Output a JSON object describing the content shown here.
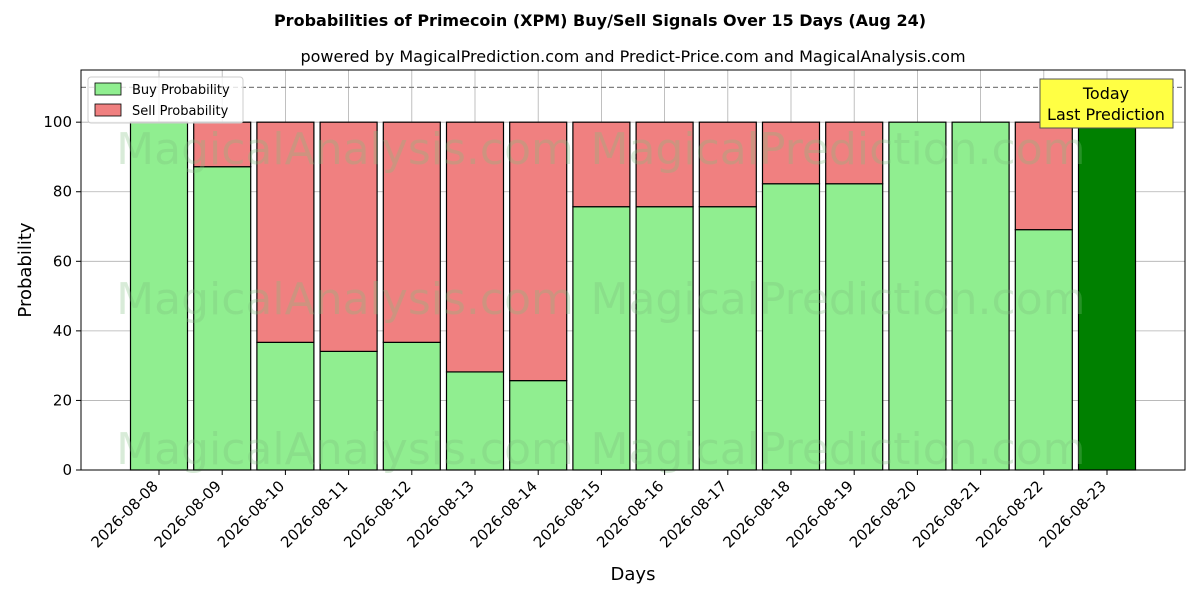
{
  "chart_data": {
    "type": "bar",
    "stacked": true,
    "title": "Probabilities of Primecoin (XPM) Buy/Sell Signals Over 15 Days (Aug 24)",
    "subtitle": "powered by MagicalPrediction.com and Predict-Price.com and MagicalAnalysis.com",
    "xlabel": "Days",
    "ylabel": "Probability",
    "ylim": [
      0,
      115
    ],
    "yticks": [
      0,
      20,
      40,
      60,
      80,
      100
    ],
    "grid": true,
    "legend_position": "top-left",
    "reference_line": 110,
    "categories": [
      "2026-08-08",
      "2026-08-09",
      "2026-08-10",
      "2026-08-11",
      "2026-08-12",
      "2026-08-13",
      "2026-08-14",
      "2026-08-15",
      "2026-08-16",
      "2026-08-17",
      "2026-08-18",
      "2026-08-19",
      "2026-08-20",
      "2026-08-21",
      "2026-08-22",
      "2026-08-23"
    ],
    "series": [
      {
        "name": "Buy Probability",
        "color": "#90ee90",
        "values": [
          100,
          87.2,
          36.7,
          34.1,
          36.7,
          28.2,
          25.7,
          75.7,
          75.7,
          75.7,
          82.3,
          82.3,
          100,
          100,
          69.1,
          100
        ]
      },
      {
        "name": "Sell Probability",
        "color": "#f08080",
        "values": [
          0,
          12.8,
          63.3,
          65.9,
          63.3,
          71.8,
          74.3,
          24.3,
          24.3,
          24.3,
          17.7,
          17.7,
          0,
          0,
          30.9,
          0
        ]
      }
    ],
    "highlight": {
      "index": 15,
      "color": "#008000"
    },
    "annotation": {
      "line1": "Today",
      "line2": "Last Prediction"
    },
    "watermarks": [
      "MagicalAnalysis.com",
      "MagicalPrediction.com"
    ]
  }
}
